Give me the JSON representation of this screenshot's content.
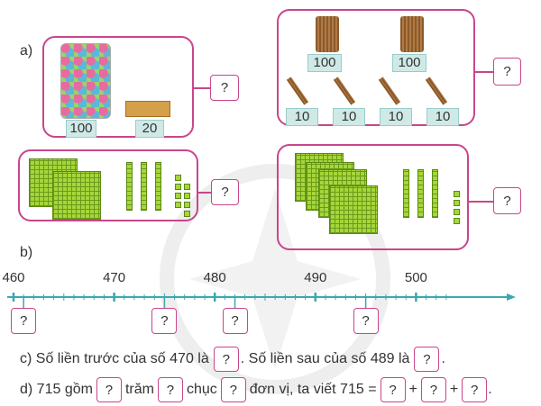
{
  "part_a": {
    "label": "a)",
    "groups": [
      {
        "labels": [
          "100",
          "20"
        ],
        "answer": "?"
      },
      {
        "labels": [
          "100",
          "100",
          "10",
          "10",
          "10",
          "10"
        ],
        "answer": "?"
      },
      {
        "hundreds": 2,
        "tens": 3,
        "ones": 8,
        "answer": "?"
      },
      {
        "hundreds": 4,
        "tens": 3,
        "ones": 4,
        "answer": "?"
      }
    ]
  },
  "part_b": {
    "label": "b)",
    "axis_labels": [
      "460",
      "470",
      "480",
      "490",
      "500"
    ],
    "axis_start": 460,
    "axis_end": 503,
    "question_positions": [
      461,
      475,
      482,
      495
    ],
    "answer": "?"
  },
  "part_c": {
    "t1": "c) Số liền trước của số 470 là",
    "t2": ". Số liền sau của số 489 là",
    "t3": ".",
    "answer": "?"
  },
  "part_d": {
    "t1": "d) 715 gồm",
    "t2": "trăm",
    "t3": "chục",
    "t4": "đơn vị, ta viết 715 =",
    "plus": "+",
    "end": ".",
    "answer": "?"
  },
  "colors": {
    "frame": "#c8468c",
    "axis": "#3aa8b0",
    "block": "#a6d63a"
  }
}
